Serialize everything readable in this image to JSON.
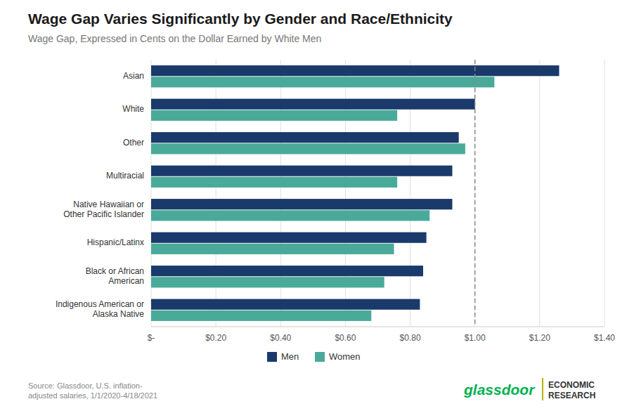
{
  "chart_data": {
    "type": "bar",
    "orientation": "horizontal",
    "title": "Wage Gap Varies Significantly by Gender and Race/Ethnicity",
    "subtitle": "Wage Gap, Expressed in Cents on the Dollar Earned by White Men",
    "categories": [
      "Asian",
      "White",
      "Other",
      "Multiracial",
      "Native Hawaiian or\nOther Pacific Islander",
      "Hispanic/Latinx",
      "Black or African\nAmerican",
      "Indigenous American or\nAlaska Native"
    ],
    "series": [
      {
        "name": "Men",
        "color": "#1a3a6b",
        "values": [
          1.26,
          1.0,
          0.95,
          0.93,
          0.93,
          0.85,
          0.84,
          0.83
        ]
      },
      {
        "name": "Women",
        "color": "#4aaa99",
        "values": [
          1.06,
          0.76,
          0.97,
          0.76,
          0.86,
          0.75,
          0.72,
          0.68
        ]
      }
    ],
    "xlim": [
      0,
      1.4
    ],
    "xticks": [
      {
        "value": 0,
        "label": "$-"
      },
      {
        "value": 0.2,
        "label": "$0.20"
      },
      {
        "value": 0.4,
        "label": "$0.40"
      },
      {
        "value": 0.6,
        "label": "$0.60"
      },
      {
        "value": 0.8,
        "label": "$0.80"
      },
      {
        "value": 1.0,
        "label": "$1.00"
      },
      {
        "value": 1.2,
        "label": "$1.20"
      },
      {
        "value": 1.4,
        "label": "$1.40"
      }
    ],
    "reference_line": 1.0,
    "grid": true,
    "legend": "bottom",
    "source": "Source: Glassdoor, U.S. inflation-\nadjusted salaries, 1/1/2020-4/18/2021",
    "annotations": [
      "glassdoor",
      "ECONOMIC",
      "RESEARCH"
    ]
  }
}
